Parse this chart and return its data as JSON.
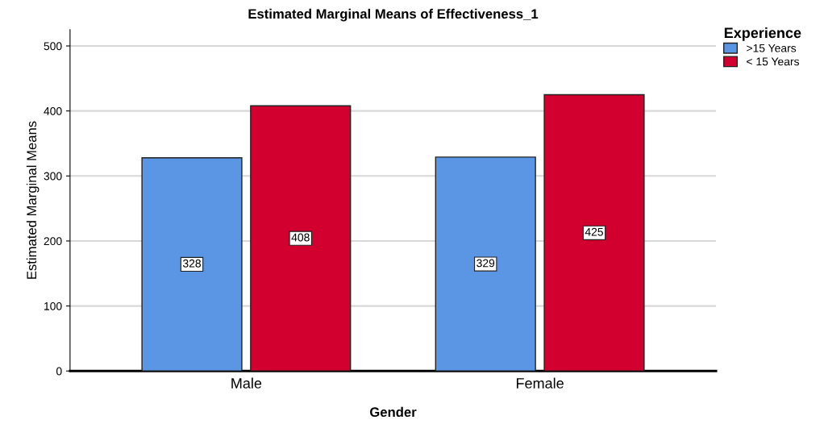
{
  "chart_data": {
    "type": "bar",
    "title": "Estimated Marginal Means of Effectiveness_1",
    "xlabel": "Gender",
    "ylabel": "Estimated Marginal Means",
    "legend_title": "Experience",
    "categories": [
      "Male",
      "Female"
    ],
    "series": [
      {
        "name": ">15 Years",
        "color": "#5a96e3",
        "values": [
          328,
          329
        ]
      },
      {
        "name": "< 15 Years",
        "color": "#d2002e",
        "values": [
          408,
          425
        ]
      }
    ],
    "ylim": [
      0,
      525
    ],
    "yticks": [
      0,
      100,
      200,
      300,
      400,
      500
    ],
    "grid": "y",
    "legend": "top right",
    "data_labels": true
  }
}
